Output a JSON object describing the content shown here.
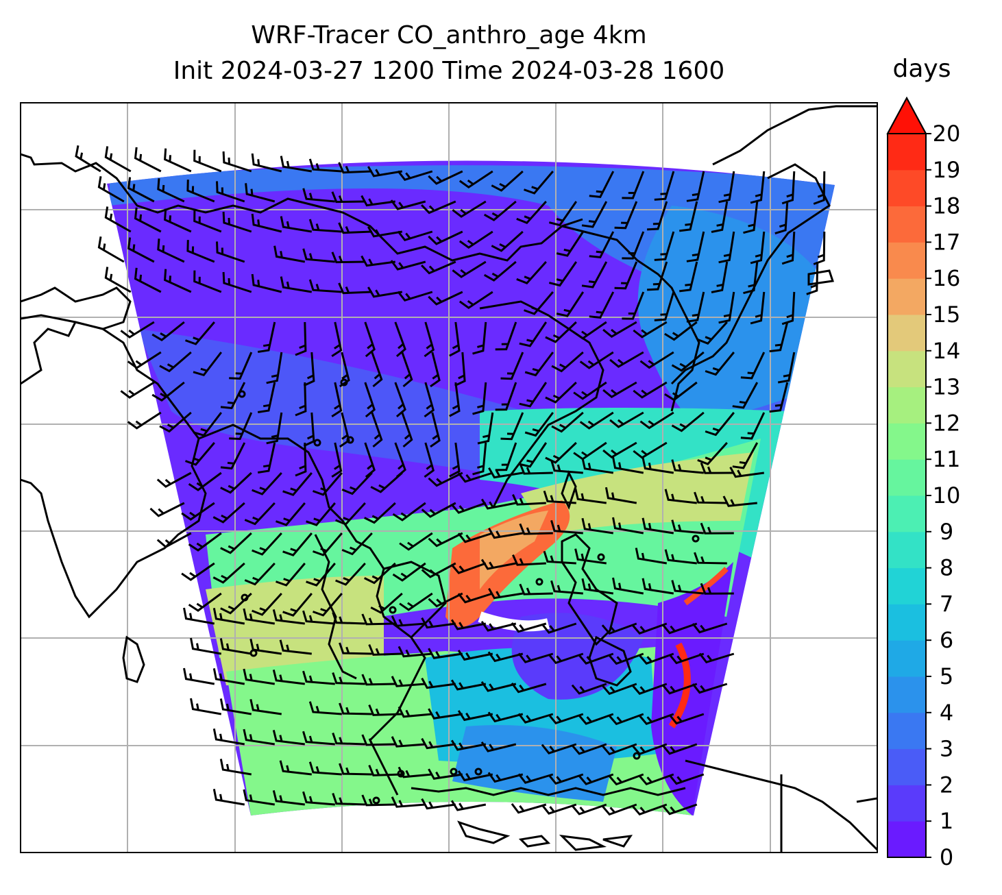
{
  "title_line1": "WRF-Tracer CO_anthro_age 4km",
  "title_line2": "Init 2024-03-27 1200 Time 2024-03-28 1600",
  "colorbar": {
    "units": "days",
    "min": 0,
    "max": 20,
    "extend": "max",
    "ticks": [
      "0",
      "1",
      "2",
      "3",
      "4",
      "5",
      "6",
      "7",
      "8",
      "9",
      "10",
      "11",
      "12",
      "13",
      "14",
      "15",
      "16",
      "17",
      "18",
      "19",
      "20"
    ],
    "colors": [
      "#6a1bff",
      "#5a3bfb",
      "#4a5cf7",
      "#3a78f2",
      "#2b92ec",
      "#1fa9e6",
      "#1bbfe0",
      "#21d3d6",
      "#33e2c6",
      "#4cefb3",
      "#66f59e",
      "#84f78b",
      "#a6f07f",
      "#c7e27e",
      "#e3c97a",
      "#f3a862",
      "#f98a4d",
      "#fc6a3a",
      "#fe4a27",
      "#ff2a15",
      "#ff1106"
    ]
  },
  "map": {
    "features": [
      "coastlines",
      "lat-lon gridlines",
      "wind barbs",
      "tracer age shading"
    ],
    "gridline_color": "#b0b0b0"
  }
}
